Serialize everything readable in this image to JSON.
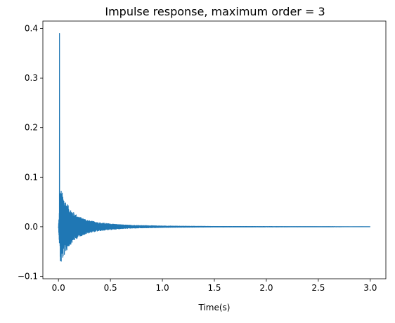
{
  "chart_data": {
    "type": "line",
    "title": "Impulse response, maximum order = 3",
    "xlabel": "Time(s)",
    "ylabel": "",
    "xlim": [
      -0.15,
      3.15
    ],
    "ylim": [
      -0.105,
      0.415
    ],
    "x_ticks": [
      0.0,
      0.5,
      1.0,
      1.5,
      2.0,
      2.5,
      3.0
    ],
    "x_tick_labels": [
      "0.0",
      "0.5",
      "1.0",
      "1.5",
      "2.0",
      "2.5",
      "3.0"
    ],
    "y_ticks": [
      -0.1,
      0.0,
      0.1,
      0.2,
      0.3,
      0.4
    ],
    "y_tick_labels": [
      "−0.1",
      "0.0",
      "0.1",
      "0.2",
      "0.3",
      "0.4"
    ],
    "grid": false,
    "legend": "none",
    "series": [
      {
        "color": "#1f77b4",
        "x_range": [
          0.0,
          3.0
        ],
        "peak": {
          "x": 0.01,
          "y": 0.39
        },
        "envelope": {
          "x": [
            0.0,
            0.02,
            0.05,
            0.1,
            0.15,
            0.2,
            0.3,
            0.4,
            0.5,
            0.6,
            0.7,
            0.8,
            1.0,
            1.2,
            1.5,
            3.0
          ],
          "upper": [
            0.0,
            0.078,
            0.06,
            0.04,
            0.028,
            0.02,
            0.012,
            0.008,
            0.006,
            0.004,
            0.003,
            0.0025,
            0.0015,
            0.001,
            0.0005,
            0.0
          ],
          "lower": [
            0.0,
            -0.078,
            -0.06,
            -0.04,
            -0.028,
            -0.02,
            -0.012,
            -0.008,
            -0.006,
            -0.004,
            -0.003,
            -0.0025,
            -0.0015,
            -0.001,
            -0.0005,
            0.0
          ]
        }
      }
    ]
  }
}
